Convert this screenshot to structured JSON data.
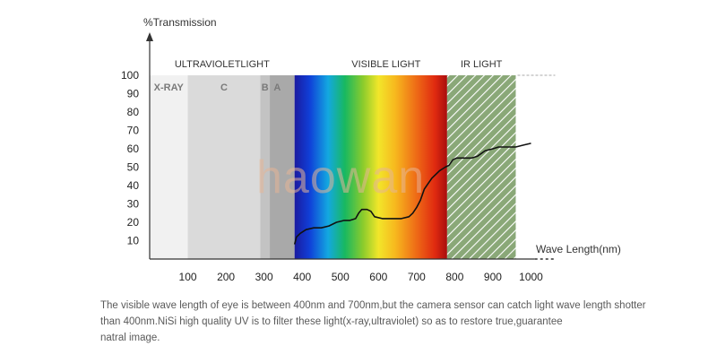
{
  "chart_data": {
    "type": "line",
    "ylabel": "%Transmission",
    "xlabel": "Wave Length(nm)",
    "xlim": [
      0,
      1000
    ],
    "ylim": [
      0,
      100
    ],
    "y_ticks": [
      "10",
      "20",
      "30",
      "40",
      "50",
      "60",
      "70",
      "80",
      "90",
      "100"
    ],
    "x_ticks": [
      "100",
      "200",
      "300",
      "400",
      "500",
      "600",
      "700",
      "800",
      "900",
      "1000"
    ],
    "band_headers": [
      "ULTRAVIOLETLIGHT",
      "VISIBLE LIGHT",
      "IR LIGHT"
    ],
    "regions": [
      {
        "label": "X-RAY",
        "from": 0,
        "to": 100,
        "color": "#f1f1f1"
      },
      {
        "label": "C",
        "from": 100,
        "to": 290,
        "color": "#dadada"
      },
      {
        "label": "B",
        "from": 290,
        "to": 315,
        "color": "#c3c3c3"
      },
      {
        "label": "A",
        "from": 315,
        "to": 380,
        "color": "#a9a9a9"
      },
      {
        "label": "",
        "from": 380,
        "to": 780,
        "color": "spectrum"
      },
      {
        "label": "",
        "from": 780,
        "to": 960,
        "color": "#8aa878"
      }
    ],
    "series": [
      {
        "x": [
          380,
          385,
          395,
          410,
          430,
          450,
          470,
          490,
          510,
          525,
          540,
          548,
          556,
          570,
          580,
          590,
          610,
          640,
          660,
          680,
          690,
          700,
          710,
          720,
          730,
          740,
          760,
          775,
          785,
          795,
          805,
          825,
          845,
          860,
          880,
          900,
          915,
          940,
          960,
          980,
          1000
        ],
        "y": [
          8,
          12,
          14,
          16,
          17,
          17,
          18,
          20,
          21,
          21,
          22,
          25,
          27,
          27,
          26,
          23,
          22,
          22,
          22,
          23,
          25,
          28,
          32,
          38,
          41,
          44,
          48,
          50,
          51,
          54,
          55,
          55,
          55,
          56,
          59,
          60,
          61,
          61,
          61,
          62,
          63
        ]
      }
    ]
  },
  "caption": {
    "line1": "The visible wave length of eye is between 400nm and 700nm,but the camera sensor can catch light wave length shotter",
    "line2": "than 400nm.NiSi high quality UV is to filter these light(x-ray,ultraviolet) so as to restore true,guarantee",
    "line3": "natral image."
  },
  "watermark": "haowan",
  "colors": {
    "curve": "#111111",
    "axis": "#333333",
    "ir_hatch": "#8aa878"
  }
}
